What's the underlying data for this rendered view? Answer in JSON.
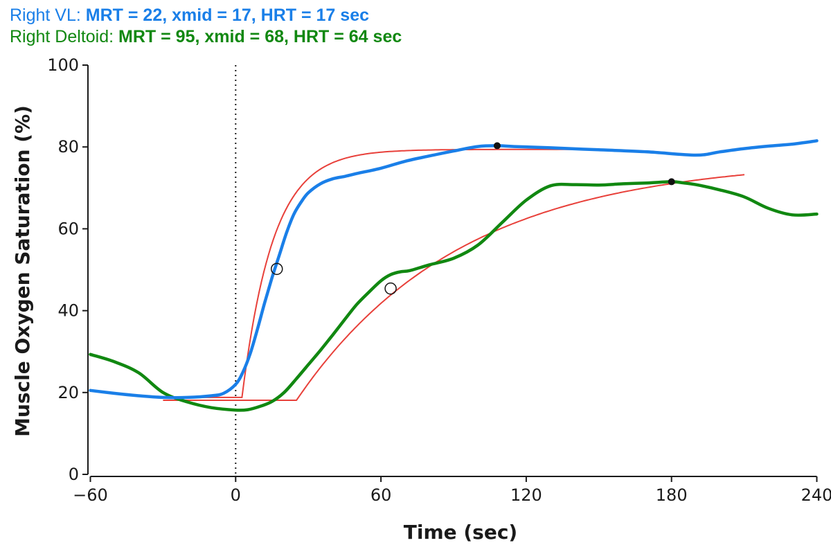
{
  "subtitles": {
    "vl": {
      "prefix": "Right VL: ",
      "stats": "MRT = 22, xmid = 17, HRT = 17 sec",
      "color": "#1a7fe8"
    },
    "deltoid": {
      "prefix": "Right Deltoid: ",
      "stats": "MRT = 95, xmid = 68, HRT = 64 sec",
      "color": "#118811"
    }
  },
  "colors": {
    "fit": "#e8403a",
    "axis": "#1a1a1a",
    "marker": "#111111"
  },
  "chart_data": {
    "type": "line",
    "xlabel": "Time (sec)",
    "ylabel": "Muscle Oxygen Saturation (%)",
    "xlim": [
      -61,
      241
    ],
    "ylim": [
      0,
      100
    ],
    "xticks": [
      -60,
      0,
      60,
      120,
      180,
      240
    ],
    "xtick_labels": [
      "−60",
      "0",
      "60",
      "120",
      "180",
      "240"
    ],
    "yticks": [
      0,
      20,
      40,
      60,
      80,
      100
    ],
    "grid": false,
    "legend": "none",
    "vline_x": 0,
    "series": [
      {
        "name": "Right VL",
        "color": "#1a7fe8",
        "x": [
          -60,
          -50,
          -40,
          -30,
          -20,
          -10,
          -5,
          0,
          3,
          6,
          9,
          12,
          15,
          18,
          21,
          24,
          27,
          30,
          35,
          40,
          45,
          50,
          60,
          70,
          80,
          90,
          100,
          108,
          115,
          130,
          150,
          170,
          190,
          200,
          210,
          220,
          230,
          240
        ],
        "y": [
          20.5,
          19.8,
          19.2,
          18.8,
          18.8,
          19.2,
          19.8,
          22.0,
          25.0,
          29.5,
          35.5,
          42.0,
          48.0,
          53.5,
          59.0,
          63.5,
          66.5,
          68.8,
          71.0,
          72.2,
          72.8,
          73.5,
          74.8,
          76.5,
          77.8,
          79.0,
          80.1,
          80.3,
          80.1,
          79.8,
          79.3,
          78.8,
          78.0,
          78.8,
          79.6,
          80.2,
          80.7,
          81.5
        ]
      },
      {
        "name": "Right Deltoid",
        "color": "#118811",
        "x": [
          -60,
          -50,
          -40,
          -30,
          -20,
          -10,
          0,
          5,
          10,
          15,
          20,
          25,
          30,
          35,
          40,
          45,
          50,
          55,
          60,
          64,
          68,
          72,
          80,
          90,
          100,
          110,
          120,
          130,
          140,
          150,
          160,
          170,
          180,
          185,
          190,
          200,
          210,
          220,
          230,
          240
        ],
        "y": [
          29.3,
          27.5,
          24.8,
          20.0,
          17.7,
          16.3,
          15.7,
          15.8,
          16.6,
          17.8,
          20.0,
          23.3,
          26.8,
          30.3,
          34.0,
          37.8,
          41.5,
          44.5,
          47.3,
          48.8,
          49.5,
          49.8,
          51.2,
          52.8,
          56.0,
          61.5,
          67.0,
          70.5,
          70.8,
          70.7,
          71.0,
          71.2,
          71.5,
          71.2,
          70.8,
          69.5,
          67.8,
          65.0,
          63.4,
          63.6
        ]
      }
    ],
    "fits": [
      {
        "x0": -30,
        "x1": 140,
        "baseline": 18.8,
        "td": 2.6,
        "tau": 12.8,
        "amp": 60.6
      },
      {
        "x0": -30,
        "x1": 211,
        "baseline": 18.1,
        "td": 25.1,
        "tau": 68.0,
        "amp": 59.0
      }
    ],
    "open_markers": [
      {
        "x": 17,
        "y": 50.2
      },
      {
        "x": 64,
        "y": 45.4
      }
    ],
    "filled_markers": [
      {
        "x": 108,
        "y": 80.3
      },
      {
        "x": 180,
        "y": 71.5
      }
    ]
  }
}
